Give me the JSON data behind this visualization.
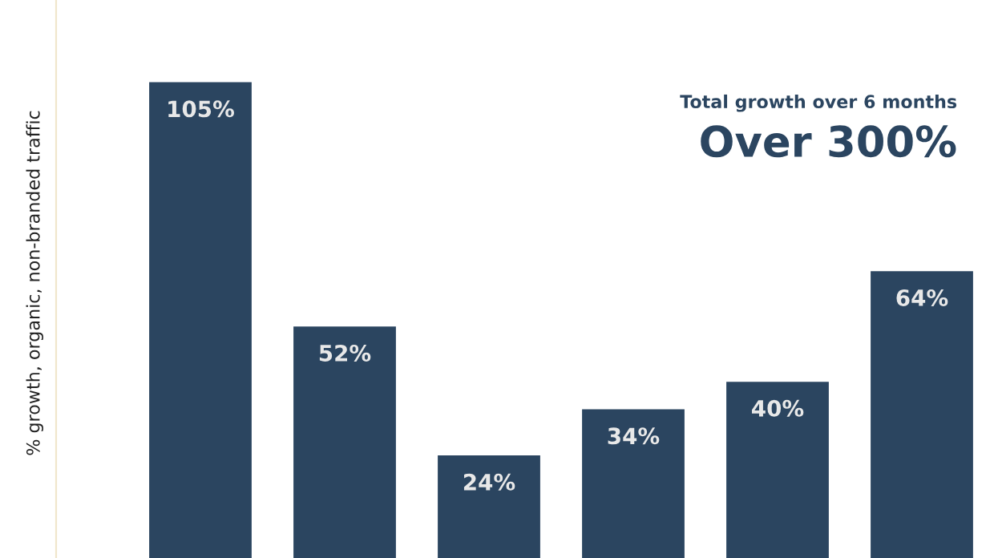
{
  "chart_data": {
    "type": "bar",
    "ylabel": "% growth, organic, non-branded traffic",
    "categories": [
      null,
      null,
      null,
      null,
      null,
      null
    ],
    "values": [
      105,
      52,
      24,
      34,
      40,
      64
    ],
    "value_labels": [
      "105%",
      "52%",
      "24%",
      "34%",
      "40%",
      "64%"
    ],
    "color": "#2b4560",
    "annotations": [
      "Total growth over 6 months",
      "Over 300%"
    ],
    "tick_labels": false,
    "grid": false,
    "legend": false
  }
}
